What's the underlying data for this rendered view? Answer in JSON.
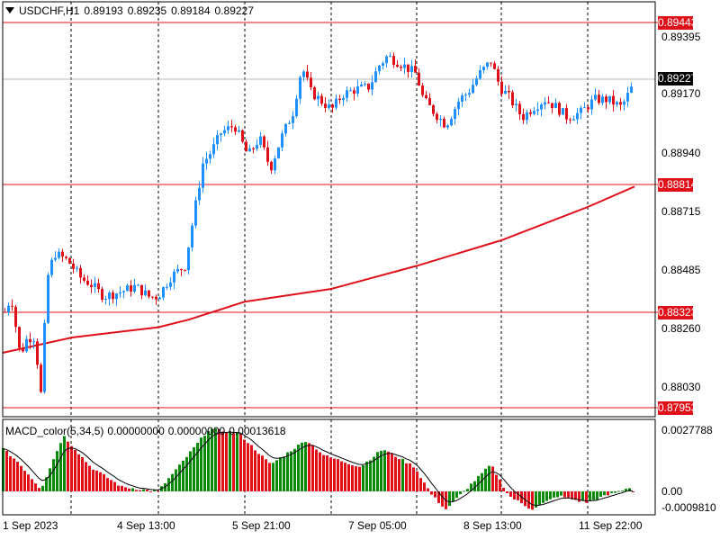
{
  "header": {
    "symbol": "USDCHF,H1",
    "open": "0.89193",
    "high": "0.89235",
    "low": "0.89184",
    "close": "0.89227"
  },
  "price_axis": {
    "labels": [
      "0.89395",
      "0.89170",
      "0.88940",
      "0.88715",
      "0.88485",
      "0.88260",
      "0.88030"
    ]
  },
  "horizontal_lines": [
    {
      "name": "level-1",
      "price": "0.89443"
    },
    {
      "name": "level-2",
      "price": "0.88814"
    },
    {
      "name": "level-3",
      "price": "0.88323"
    },
    {
      "name": "level-4",
      "price": "0.87953"
    }
  ],
  "current_price": "0.89227",
  "macd": {
    "title": "MACD_color(5,34,5)",
    "values": [
      "0.00000000",
      "0.00000000",
      "0.00013618"
    ],
    "axis_labels": [
      "0.0027788",
      "0.00",
      "-0.0009810"
    ]
  },
  "time_axis": {
    "labels": [
      "1 Sep 2023",
      "4 Sep 13:00",
      "5 Sep 21:00",
      "7 Sep 05:00",
      "8 Sep 13:00",
      "11 Sep 22:00"
    ]
  },
  "colors": {
    "bull": "#1e90ff",
    "bear": "#e0101a",
    "ma": "#e0101a",
    "hist_up": "#0a8a0a",
    "hist_down": "#e0101a",
    "grid": "#000000"
  },
  "chart_data": {
    "type": "candlestick",
    "symbol": "USDCHF",
    "timeframe": "H1",
    "ylim": [
      0.8795,
      0.8946
    ],
    "key_points": [
      {
        "t": "1 Sep 2023",
        "price": 0.8831
      },
      {
        "t": "1 Sep 2023",
        "price": 0.8796
      },
      {
        "t": "4 Sep 13:00",
        "price": 0.8846
      },
      {
        "t": "5 Sep 21:00",
        "price": 0.8905
      },
      {
        "t": "6 Sep",
        "price": 0.8943
      },
      {
        "t": "7 Sep 05:00",
        "price": 0.893
      },
      {
        "t": "8 Sep 13:00",
        "price": 0.892
      },
      {
        "t": "11 Sep 22:00",
        "price": 0.8923
      }
    ],
    "moving_average": [
      {
        "t": "1 Sep 2023",
        "price": 0.8816
      },
      {
        "t": "4 Sep 13:00",
        "price": 0.8825
      },
      {
        "t": "5 Sep 21:00",
        "price": 0.8837
      },
      {
        "t": "7 Sep 05:00",
        "price": 0.8848
      },
      {
        "t": "8 Sep 13:00",
        "price": 0.8861
      },
      {
        "t": "11 Sep 22:00",
        "price": 0.8881
      }
    ]
  }
}
